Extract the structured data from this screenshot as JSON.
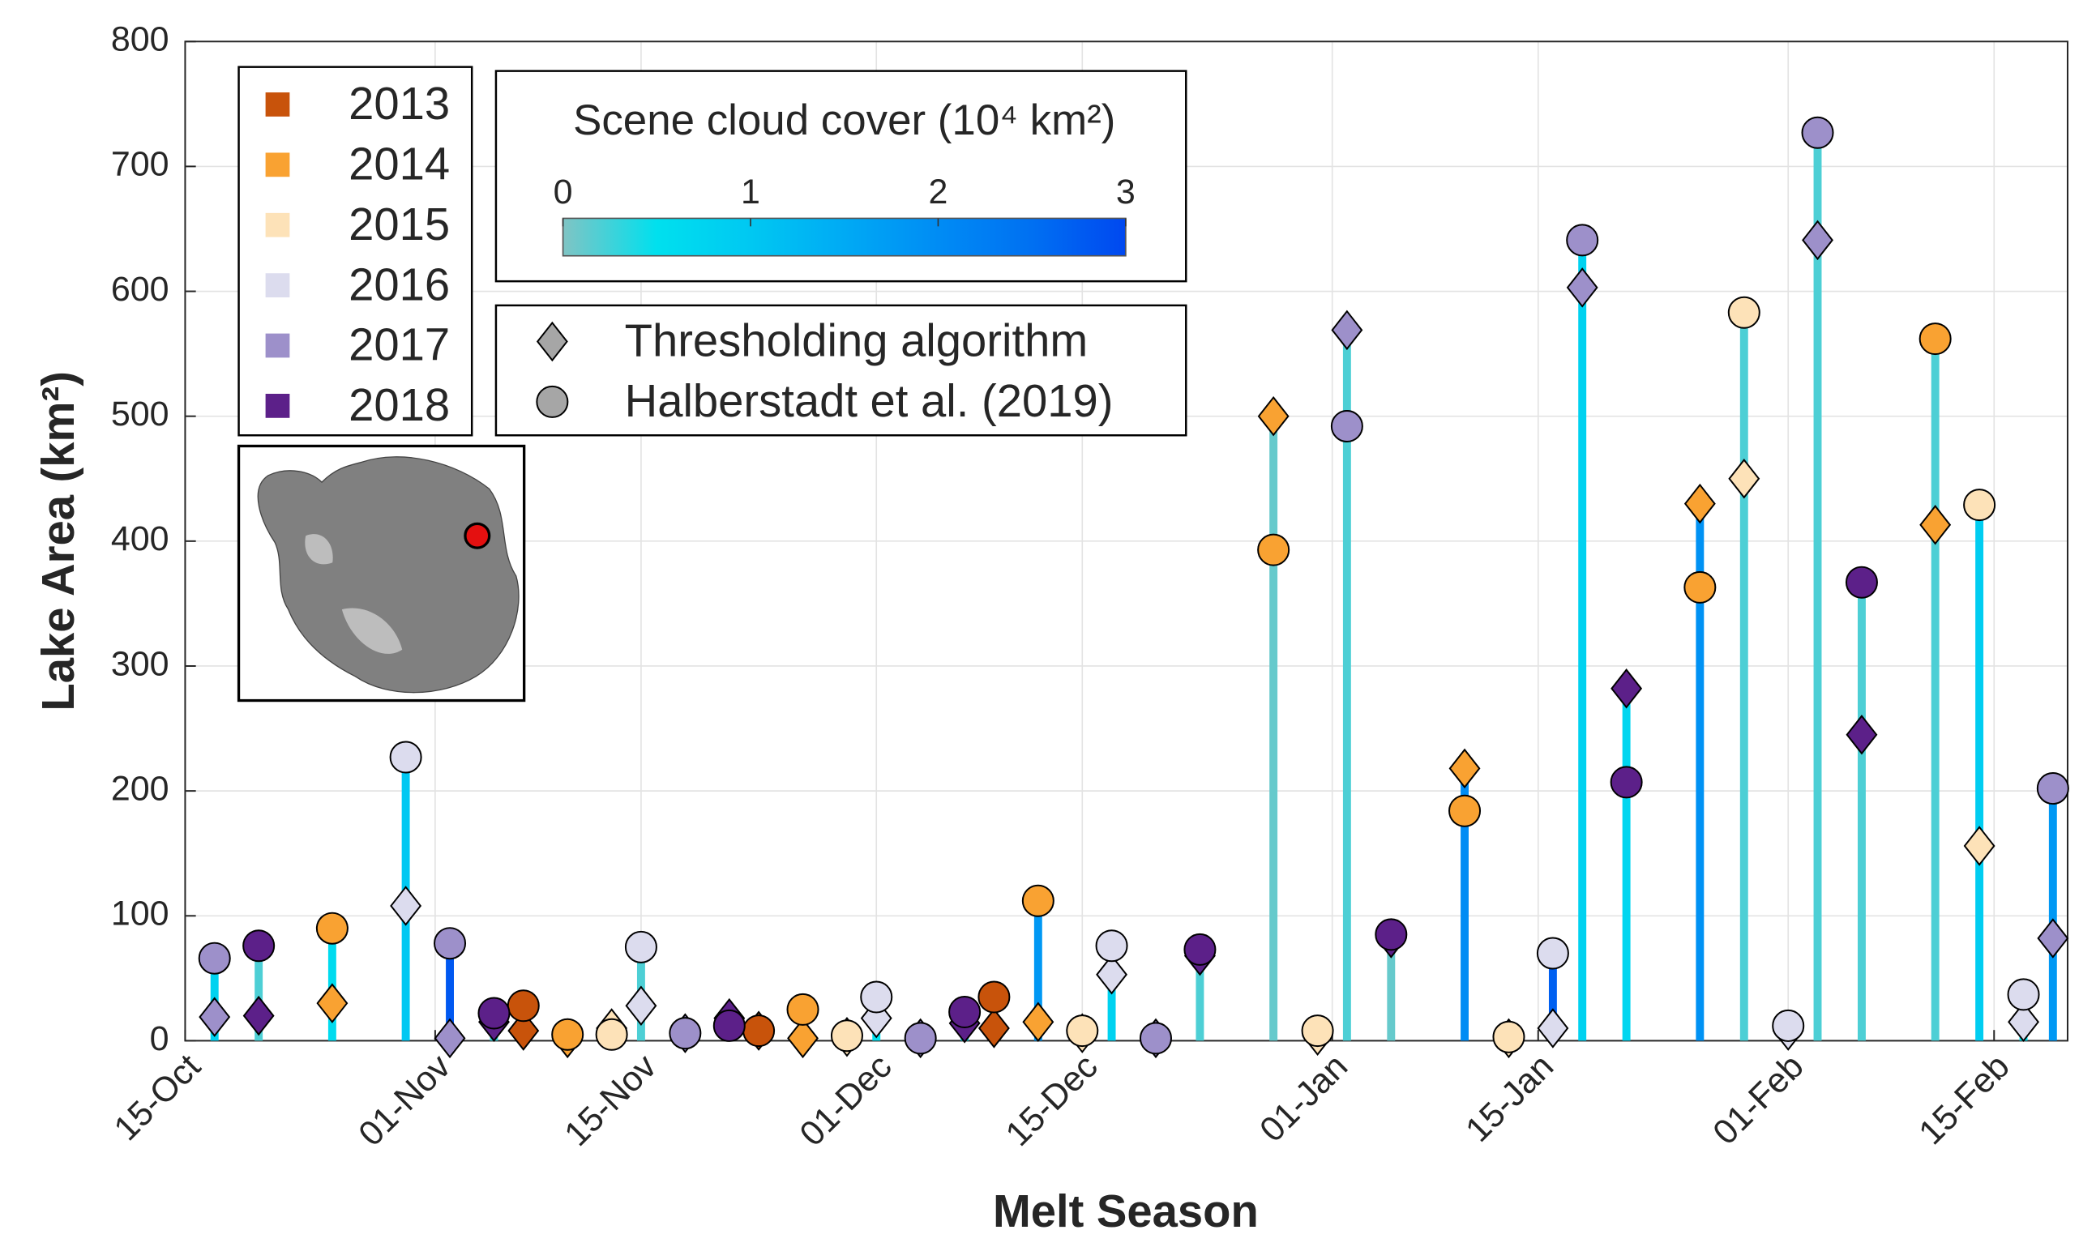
{
  "chart_data": {
    "type": "stem",
    "xlabel": "Melt Season",
    "ylabel": "Lake Area (km²)",
    "xlim": [
      "15-Oct",
      "20-Feb"
    ],
    "xticks": [
      "15-Oct",
      "01-Nov",
      "15-Nov",
      "01-Dec",
      "15-Dec",
      "01-Jan",
      "15-Jan",
      "01-Feb",
      "15-Feb"
    ],
    "ylim": [
      0,
      800
    ],
    "yticks": [
      0,
      100,
      200,
      300,
      400,
      500,
      600,
      700,
      800
    ],
    "grid": true,
    "series": [
      {
        "name": "2013",
        "color": "#c8530b",
        "x": [
          "07-Nov",
          "23-Nov",
          "09-Dec"
        ],
        "threshold": [
          8,
          8,
          10
        ],
        "halberstadt": [
          28,
          8,
          35
        ],
        "cloud_cover": [
          0.5,
          0.5,
          0.5
        ]
      },
      {
        "name": "2014",
        "color": "#f9a232",
        "x": [
          "25-Oct",
          "10-Nov",
          "26-Nov",
          "12-Dec",
          "28-Dec",
          "10-Jan",
          "26-Jan",
          "11-Feb"
        ],
        "threshold": [
          30,
          2,
          2,
          15,
          500,
          218,
          430,
          413
        ],
        "halberstadt": [
          90,
          5,
          25,
          112,
          393,
          184,
          363,
          562
        ],
        "cloud_cover": [
          0.6,
          0.5,
          0.5,
          1.8,
          0.1,
          2.0,
          1.9,
          0.2
        ]
      },
      {
        "name": "2015",
        "color": "#fde2b8",
        "x": [
          "13-Nov",
          "29-Nov",
          "15-Dec",
          "31-Dec",
          "13-Jan",
          "29-Jan",
          "14-Feb"
        ],
        "threshold": [
          10,
          3,
          6,
          4,
          2,
          450,
          156
        ],
        "halberstadt": [
          5,
          4,
          8,
          8,
          3,
          583,
          429
        ],
        "cloud_cover": [
          0.5,
          0.5,
          0.5,
          0.5,
          0.5,
          0.2,
          0.9
        ]
      },
      {
        "name": "2016",
        "color": "#dcdcee",
        "x": [
          "30-Oct",
          "15-Nov",
          "01-Dec",
          "17-Dec",
          "16-Jan",
          "01-Feb",
          "17-Feb"
        ],
        "threshold": [
          108,
          28,
          18,
          53,
          10,
          8,
          15
        ],
        "halberstadt": [
          227,
          75,
          35,
          76,
          70,
          12,
          37
        ],
        "cloud_cover": [
          1.0,
          0.2,
          0.5,
          0.8,
          2.7,
          0.5,
          0.5
        ]
      },
      {
        "name": "2017",
        "color": "#9d90ca",
        "x": [
          "17-Oct",
          "02-Nov",
          "18-Nov",
          "04-Dec",
          "20-Dec",
          "02-Jan",
          "18-Jan",
          "03-Feb",
          "19-Feb"
        ],
        "threshold": [
          19,
          2,
          6,
          2,
          2,
          569,
          603,
          641,
          82
        ],
        "halberstadt": [
          66,
          78,
          6,
          2,
          2,
          492,
          641,
          727,
          202
        ],
        "cloud_cover": [
          0.8,
          2.8,
          0.5,
          0.5,
          0.5,
          0.2,
          0.8,
          0.2,
          1.8
        ]
      },
      {
        "name": "2018",
        "color": "#5c2089",
        "x": [
          "20-Oct",
          "05-Nov",
          "21-Nov",
          "07-Dec",
          "23-Dec",
          "05-Jan",
          "21-Jan",
          "06-Feb"
        ],
        "threshold": [
          20,
          15,
          18,
          14,
          68,
          82,
          282,
          245
        ],
        "halberstadt": [
          76,
          22,
          12,
          23,
          73,
          85,
          207,
          367
        ],
        "cloud_cover": [
          0.2,
          0.3,
          0.5,
          0.5,
          0.2,
          0.1,
          0.7,
          0.2
        ]
      }
    ],
    "markers": [
      {
        "name": "Thresholding algorithm",
        "shape": "diamond"
      },
      {
        "name": "Halberstadt et al. (2019)",
        "shape": "circle"
      }
    ],
    "marker_legend_color": "#a6a6a6",
    "colorbar": {
      "title": "Scene cloud cover (10⁴ km²)",
      "lim": [
        0,
        3
      ],
      "ticks": [
        0,
        1,
        2,
        3
      ],
      "colors": [
        "#80c4c4",
        "#00e0ee",
        "#00c8f2",
        "#00aaf4",
        "#008cf4",
        "#0070f2",
        "#0048f0"
      ]
    }
  }
}
